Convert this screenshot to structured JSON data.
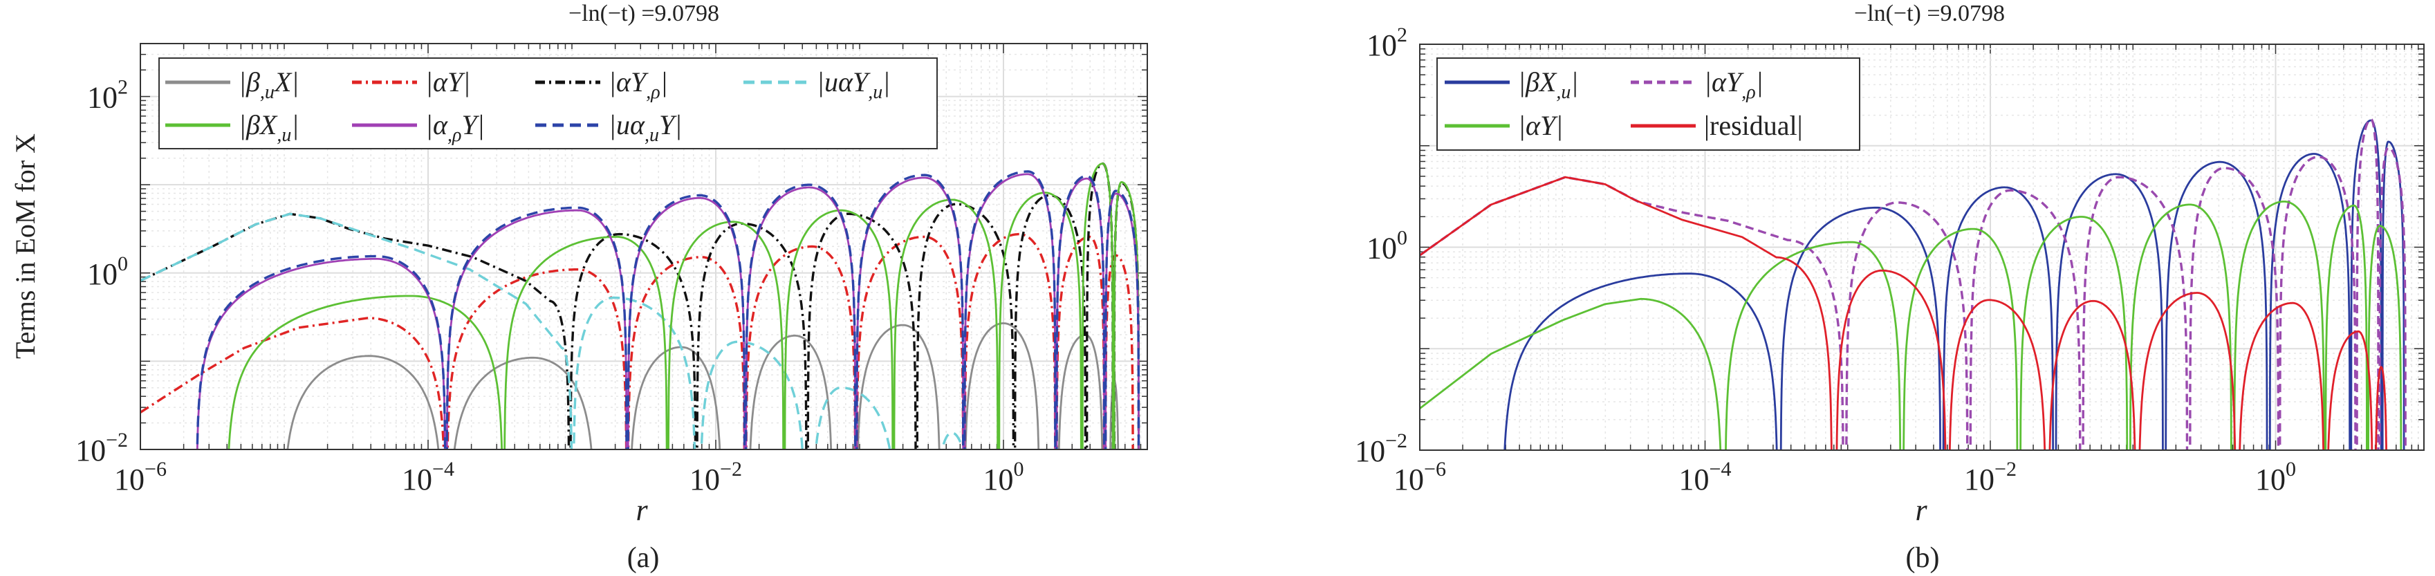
{
  "chart_data": [
    {
      "type": "line",
      "panel": "a",
      "title": "−ln(−t) =9.0798",
      "xlabel": "r",
      "ylabel": "Terms in EoM for X",
      "caption": "(a)",
      "xscale": "log",
      "yscale": "log",
      "xlim_log10": [
        -6,
        1.0
      ],
      "ylim_log10": [
        -2,
        2.6
      ],
      "xticks": [
        "-6",
        "-4",
        "-2",
        "0"
      ],
      "yticks": [
        "-2",
        "0",
        "2"
      ],
      "grid": true,
      "legend_placement": "top-left",
      "legend_columns": 4,
      "note": "series given as log10(r), log10(value); lobes = [start, peak_x, peak_y, end]",
      "series": [
        {
          "id": "beta_u_X",
          "label": "|β_{,u}X|",
          "color": "#8c8c8c",
          "dash": "",
          "lobes": [
            [
              -5.01,
              -4.41,
              -0.94,
              -3.9
            ],
            [
              -3.85,
              -3.27,
              -0.96,
              -2.84
            ],
            [
              -2.6,
              -2.24,
              -0.84,
              -1.96
            ],
            [
              -1.77,
              -1.45,
              -0.71,
              -1.19
            ],
            [
              -1.02,
              -0.7,
              -0.59,
              -0.44
            ],
            [
              -0.27,
              0.0,
              -0.57,
              0.25
            ],
            [
              0.38,
              0.57,
              -0.7,
              0.69
            ],
            [
              0.74,
              0.77,
              -1.22,
              0.8
            ]
          ]
        },
        {
          "id": "alpha_Y",
          "label": "|αY|",
          "color": "#e02424",
          "dash": "14 6 3 6",
          "lead": [
            [
              -6,
              -1.58
            ],
            [
              -5.6,
              -1.16
            ],
            [
              -5.28,
              -0.85
            ],
            [
              -4.9,
              -0.62
            ],
            [
              -4.42,
              -0.51
            ]
          ],
          "tail_end": -3.88,
          "lobes": [
            [
              -3.87,
              -2.96,
              0.04,
              -2.62
            ],
            [
              -2.61,
              -2.1,
              0.18,
              -1.8
            ],
            [
              -1.79,
              -1.33,
              0.3,
              -1.03
            ],
            [
              -1.02,
              -0.55,
              0.41,
              -0.28
            ],
            [
              -0.27,
              0.11,
              0.44,
              0.36
            ],
            [
              0.37,
              0.6,
              0.41,
              0.7
            ],
            [
              0.71,
              0.78,
              0.2,
              0.9
            ]
          ]
        },
        {
          "id": "alpha_Y_rho",
          "label": "|αY_{,ρ}|",
          "color": "#111111",
          "dash": "14 6 3 6",
          "lead": [
            [
              -6,
              -0.087
            ],
            [
              -5.5,
              0.3
            ],
            [
              -5.2,
              0.55
            ],
            [
              -4.96,
              0.67
            ],
            [
              -4.75,
              0.62
            ],
            [
              -4.55,
              0.5
            ],
            [
              -4.3,
              0.39
            ],
            [
              -4.0,
              0.31
            ],
            [
              -3.69,
              0.18
            ],
            [
              -3.32,
              -0.09
            ],
            [
              -3.15,
              -0.32
            ]
          ],
          "tail_end": -3.02,
          "lobes": [
            [
              -3.01,
              -2.67,
              0.44,
              -2.14
            ],
            [
              -2.13,
              -1.82,
              0.56,
              -1.37
            ],
            [
              -1.36,
              -1.08,
              0.67,
              -0.61
            ],
            [
              -0.6,
              -0.33,
              0.78,
              0.07
            ],
            [
              0.08,
              0.32,
              0.88,
              0.57
            ],
            [
              0.58,
              0.69,
              1.24,
              0.76
            ],
            [
              0.77,
              0.82,
              1.02,
              0.94
            ]
          ]
        },
        {
          "id": "u_alpha_Y_u",
          "label": "|uαY_{,u}|",
          "color": "#6fd0d8",
          "dash": "16 9",
          "lead": [
            [
              -6,
              -0.087
            ],
            [
              -5.5,
              0.3
            ],
            [
              -5.2,
              0.55
            ],
            [
              -4.96,
              0.67
            ],
            [
              -4.75,
              0.62
            ],
            [
              -4.42,
              0.44
            ],
            [
              -4.1,
              0.27
            ],
            [
              -3.71,
              0.04
            ],
            [
              -3.32,
              -0.35
            ],
            [
              -3.07,
              -0.85
            ]
          ],
          "tail_end": -3.0,
          "lobes": [
            [
              -2.99,
              -2.71,
              -0.28,
              -2.14
            ],
            [
              -2.11,
              -1.85,
              -0.78,
              -1.38
            ],
            [
              -1.33,
              -1.13,
              -1.3,
              -0.74
            ],
            [
              -0.48,
              -0.36,
              -1.81,
              -0.22
            ]
          ]
        },
        {
          "id": "beta_X_u",
          "label": "|βX_{,u}|",
          "color": "#5cc034",
          "dash": "",
          "lobes": [
            [
              -5.4,
              -4.12,
              -0.26,
              -3.48
            ],
            [
              -3.47,
              -2.69,
              0.41,
              -2.34
            ],
            [
              -2.33,
              -1.88,
              0.58,
              -1.53
            ],
            [
              -1.52,
              -1.13,
              0.71,
              -0.77
            ],
            [
              -0.76,
              -0.36,
              0.83,
              -0.04
            ],
            [
              -0.03,
              0.29,
              0.91,
              0.54
            ],
            [
              0.55,
              0.69,
              1.24,
              0.76
            ],
            [
              0.77,
              0.82,
              1.03,
              0.94
            ]
          ]
        },
        {
          "id": "alpha_rho_Y",
          "label": "|α_{,ρ}Y|",
          "color": "#a040b4",
          "dash": "",
          "lobes": [
            [
              -5.61,
              -4.36,
              0.16,
              -3.88
            ],
            [
              -3.87,
              -2.96,
              0.71,
              -2.62
            ],
            [
              -2.61,
              -2.11,
              0.85,
              -1.8
            ],
            [
              -1.79,
              -1.35,
              0.97,
              -1.03
            ],
            [
              -1.02,
              -0.55,
              1.08,
              -0.28
            ],
            [
              -0.27,
              0.17,
              1.12,
              0.36
            ],
            [
              0.37,
              0.58,
              1.07,
              0.7
            ],
            [
              0.71,
              0.78,
              0.9,
              0.94
            ]
          ]
        },
        {
          "id": "u_alpha_u_Y",
          "label": "|uα_{,u}Y|",
          "color": "#2c44a8",
          "dash": "16 9",
          "copy_of": "alpha_rho_Y",
          "log_offset": 0.03
        }
      ]
    },
    {
      "type": "line",
      "panel": "b",
      "title": "−ln(−t) =9.0798",
      "xlabel": "r",
      "caption": "(b)",
      "xscale": "log",
      "yscale": "log",
      "xlim_log10": [
        -6,
        1.04
      ],
      "ylim_log10": [
        -2,
        2
      ],
      "xticks": [
        "-6",
        "-4",
        "-2",
        "0"
      ],
      "yticks": [
        "-2",
        "0",
        "2"
      ],
      "grid": true,
      "legend_placement": "top-left",
      "legend_columns": 2,
      "series": [
        {
          "id": "beta_X_u",
          "label": "|βX_{,u}|",
          "color": "#2a3c9e",
          "dash": "",
          "lobes": [
            [
              -5.42,
              -4.11,
              -0.26,
              -3.49
            ],
            [
              -3.47,
              -2.8,
              0.39,
              -2.35
            ],
            [
              -2.33,
              -1.9,
              0.59,
              -1.56
            ],
            [
              -1.54,
              -1.12,
              0.72,
              -0.79
            ],
            [
              -0.77,
              -0.39,
              0.84,
              -0.06
            ],
            [
              -0.04,
              0.27,
              0.92,
              0.52
            ],
            [
              0.53,
              0.67,
              1.25,
              0.74
            ],
            [
              0.75,
              0.79,
              1.04,
              0.9
            ]
          ]
        },
        {
          "id": "alpha_Y_rho",
          "label": "|αY_{,ρ}|",
          "color": "#9a4aae",
          "dash": "12 7",
          "lead": [
            [
              -6,
              -0.08
            ],
            [
              -5.5,
              0.42
            ],
            [
              -4.98,
              0.69
            ],
            [
              -4.7,
              0.62
            ],
            [
              -4.47,
              0.45
            ],
            [
              -4.15,
              0.34
            ],
            [
              -3.84,
              0.26
            ],
            [
              -3.42,
              0.07
            ]
          ],
          "tail_end": -3.03,
          "lobes": [
            [
              -3.01,
              -2.65,
              0.44,
              -2.16
            ],
            [
              -2.14,
              -1.86,
              0.56,
              -1.37
            ],
            [
              -1.35,
              -1.1,
              0.69,
              -0.62
            ],
            [
              -0.6,
              -0.36,
              0.78,
              0.02
            ],
            [
              0.03,
              0.3,
              0.89,
              0.56
            ],
            [
              0.57,
              0.67,
              1.26,
              0.72
            ],
            [
              0.73,
              0.79,
              0.98,
              0.91
            ]
          ]
        },
        {
          "id": "alpha_Y",
          "label": "|αY|",
          "color": "#5cc034",
          "dash": "",
          "lead": [
            [
              -6,
              -1.59
            ],
            [
              -5.5,
              -1.05
            ],
            [
              -5,
              -0.72
            ],
            [
              -4.7,
              -0.56
            ],
            [
              -4.45,
              -0.51
            ]
          ],
          "tail_end": -3.88,
          "lobes": [
            [
              -3.86,
              -2.97,
              0.05,
              -2.63
            ],
            [
              -2.61,
              -2.12,
              0.18,
              -1.81
            ],
            [
              -1.79,
              -1.36,
              0.3,
              -1.04
            ],
            [
              -1.02,
              -0.6,
              0.42,
              -0.31
            ],
            [
              -0.29,
              0.06,
              0.45,
              0.34
            ],
            [
              0.35,
              0.55,
              0.41,
              0.64
            ],
            [
              0.65,
              0.73,
              0.21,
              0.88
            ]
          ]
        },
        {
          "id": "residual",
          "label": "|residual|",
          "color": "#e0202a",
          "dash": "",
          "upright": true,
          "lead": [
            [
              -6,
              -0.08
            ],
            [
              -5.5,
              0.42
            ],
            [
              -4.98,
              0.69
            ],
            [
              -4.7,
              0.62
            ],
            [
              -4.5,
              0.47
            ],
            [
              -4.16,
              0.27
            ],
            [
              -3.74,
              0.1
            ],
            [
              -3.5,
              -0.1
            ]
          ],
          "tail_end": -3.11,
          "lobes": [
            [
              -3.08,
              -2.76,
              -0.23,
              -2.31
            ],
            [
              -2.29,
              -2.01,
              -0.52,
              -1.61
            ],
            [
              -1.59,
              -1.28,
              -0.53,
              -0.98
            ],
            [
              -0.96,
              -0.55,
              -0.45,
              -0.28
            ],
            [
              -0.26,
              0.12,
              -0.55,
              0.34
            ],
            [
              0.36,
              0.58,
              -0.83,
              0.68
            ],
            [
              0.7,
              0.74,
              -1.18,
              0.78
            ]
          ]
        }
      ]
    }
  ]
}
